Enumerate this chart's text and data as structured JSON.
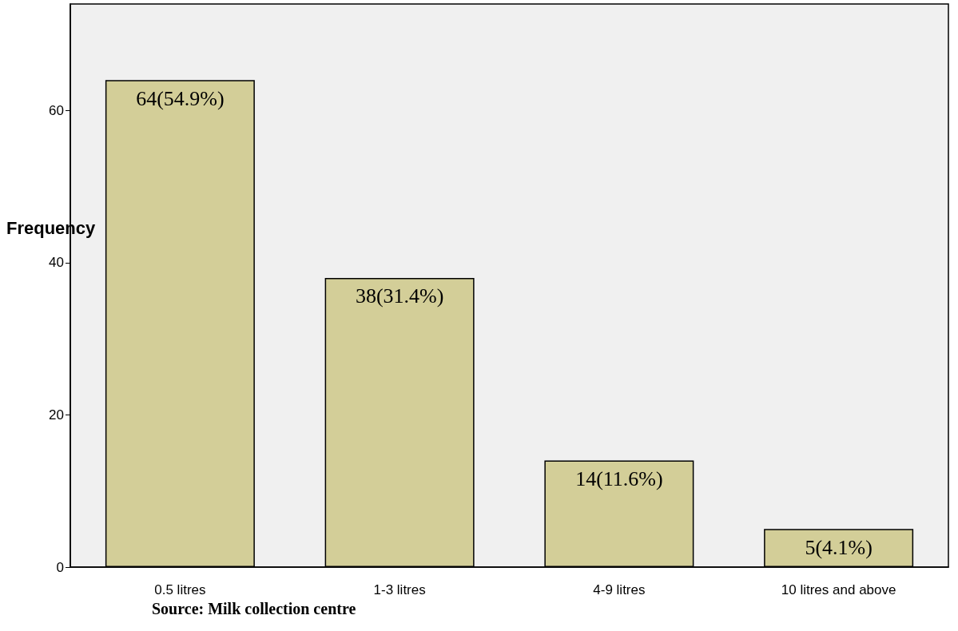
{
  "chart_data": {
    "type": "bar",
    "ylabel": "Frequency",
    "categories": [
      "0.5 litres",
      "1-3 litres",
      "4-9 litres",
      "10 litres and above"
    ],
    "values": [
      64,
      38,
      14,
      5
    ],
    "value_labels": [
      "64(54.9%)",
      "38(31.4%)",
      "14(11.6%)",
      "5(4.1%)"
    ],
    "color": "#d3ce98",
    "ylim": [
      0,
      74
    ],
    "yticks": [
      0,
      20,
      40,
      60
    ],
    "grid": false,
    "annotations": [
      "Source: Milk collection centre"
    ]
  }
}
